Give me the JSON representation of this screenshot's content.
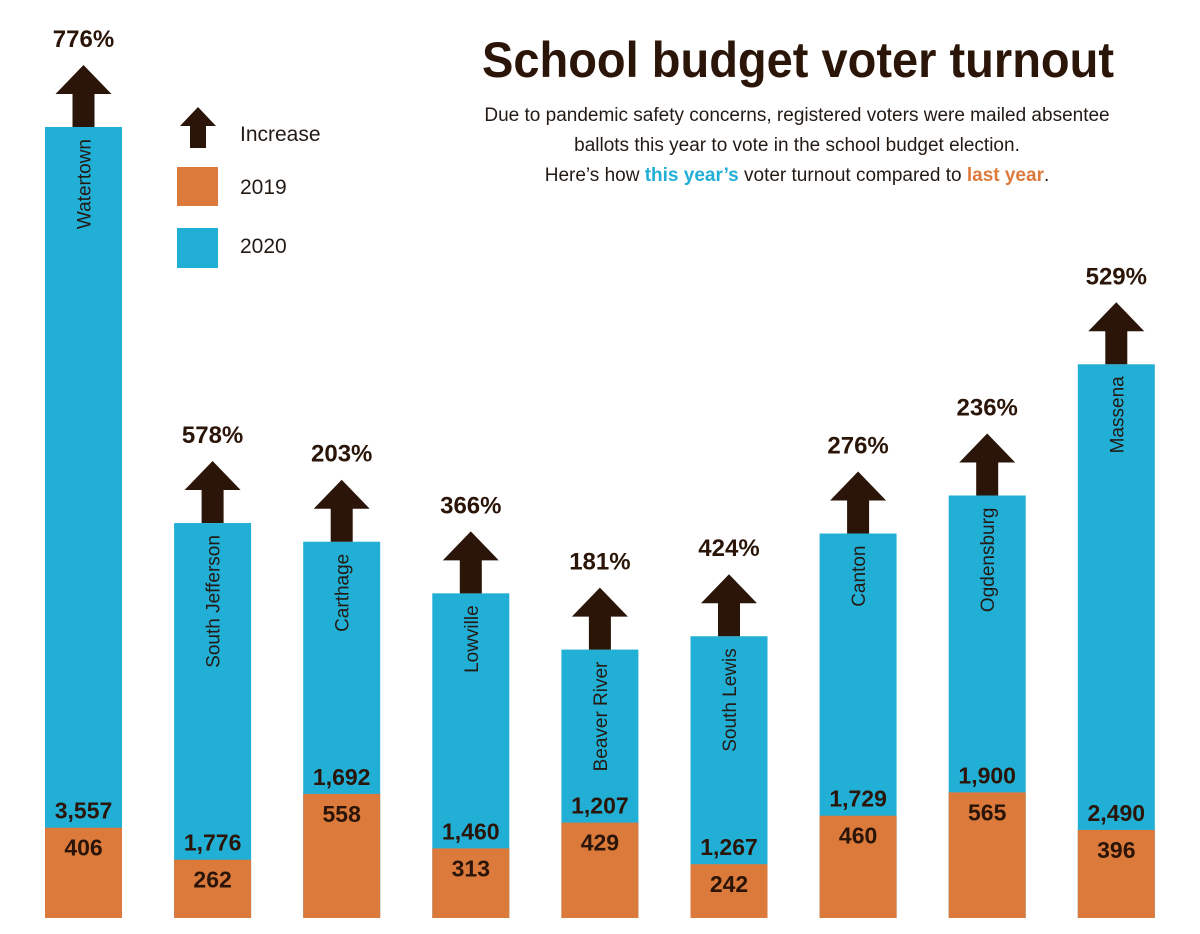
{
  "chart_data": {
    "type": "bar",
    "stacked_overlay": true,
    "title": "School budget voter turnout",
    "subtitle": [
      "Due to pandemic safety concerns, registered voters were mailed absentee",
      "ballots this year to vote in the school budget election."
    ],
    "subtitle_line3": {
      "pre": "Here’s how ",
      "highlight_2020": "this year’s",
      "mid": " voter turnout compared to ",
      "highlight_2019": "last year",
      "post": "."
    },
    "legend": {
      "placement": "top-left",
      "items": [
        {
          "label": "Increase",
          "icon": "up-arrow-icon"
        },
        {
          "label": "2019",
          "color": "#dc7a3c"
        },
        {
          "label": "2020",
          "color": "#22afd6"
        }
      ]
    },
    "colors": {
      "2019": "#dc7a3c",
      "2020": "#22afd6",
      "arrow": "#2a1508"
    },
    "categories": [
      "Watertown",
      "South Jefferson",
      "Carthage",
      "Lowville",
      "Beaver River",
      "South Lewis",
      "Canton",
      "Ogdensburg",
      "Massena"
    ],
    "series": [
      {
        "name": "2019",
        "values": [
          406,
          262,
          558,
          313,
          429,
          242,
          460,
          565,
          396
        ],
        "labels": [
          "406",
          "262",
          "558",
          "313",
          "429",
          "242",
          "460",
          "565",
          "396"
        ]
      },
      {
        "name": "2020",
        "values": [
          3557,
          1776,
          1692,
          1460,
          1207,
          1267,
          1729,
          1900,
          2490
        ],
        "labels": [
          "3,557",
          "1,776",
          "1,692",
          "1,460",
          "1,207",
          "1,267",
          "1,729",
          "1,900",
          "2,490"
        ]
      }
    ],
    "increase_labels": [
      "776%",
      "578%",
      "203%",
      "366%",
      "181%",
      "424%",
      "276%",
      "236%",
      "529%"
    ],
    "ylim": [
      0,
      3557
    ],
    "grid": false,
    "axes_visible": false
  }
}
